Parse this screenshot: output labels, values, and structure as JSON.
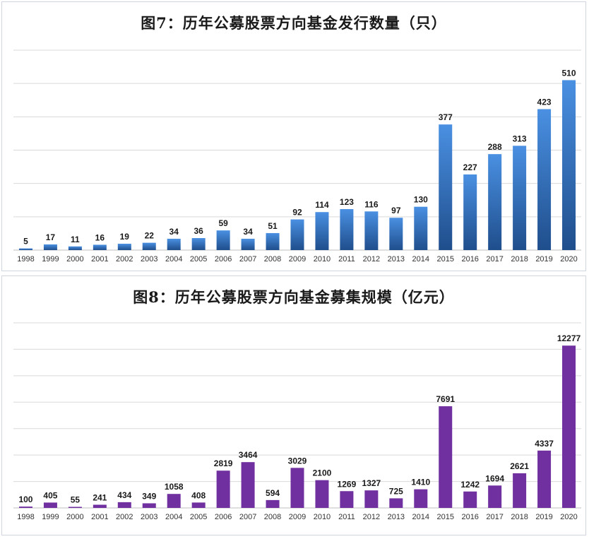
{
  "colors": {
    "chart1_bar_top": "#4a90e2",
    "chart1_bar_bottom": "#1f4e8c",
    "chart2_bar": "#7030a0"
  },
  "chart_data": [
    {
      "type": "bar",
      "title": "图7：历年公募股票方向基金发行数量（只）",
      "xlabel": "",
      "ylabel": "",
      "ylim": [
        0,
        600
      ],
      "grid": true,
      "categories": [
        "1998",
        "1999",
        "2000",
        "2001",
        "2002",
        "2003",
        "2004",
        "2005",
        "2006",
        "2007",
        "2008",
        "2009",
        "2010",
        "2011",
        "2012",
        "2013",
        "2014",
        "2015",
        "2016",
        "2017",
        "2018",
        "2019",
        "2020"
      ],
      "values": [
        5,
        17,
        11,
        16,
        19,
        22,
        34,
        36,
        59,
        34,
        51,
        92,
        114,
        123,
        116,
        97,
        130,
        377,
        227,
        288,
        313,
        423,
        510
      ]
    },
    {
      "type": "bar",
      "title": "图8：历年公募股票方向基金募集规模（亿元）",
      "xlabel": "",
      "ylabel": "",
      "ylim": [
        0,
        14000
      ],
      "grid": true,
      "categories": [
        "1998",
        "1999",
        "2000",
        "2001",
        "2002",
        "2003",
        "2004",
        "2005",
        "2006",
        "2007",
        "2008",
        "2009",
        "2010",
        "2011",
        "2012",
        "2013",
        "2014",
        "2015",
        "2016",
        "2017",
        "2018",
        "2019",
        "2020"
      ],
      "values": [
        100,
        405,
        55,
        241,
        434,
        349,
        1058,
        408,
        2819,
        3464,
        594,
        3029,
        2100,
        1269,
        1327,
        725,
        1410,
        7691,
        1242,
        1694,
        2621,
        4337,
        12277
      ]
    }
  ]
}
